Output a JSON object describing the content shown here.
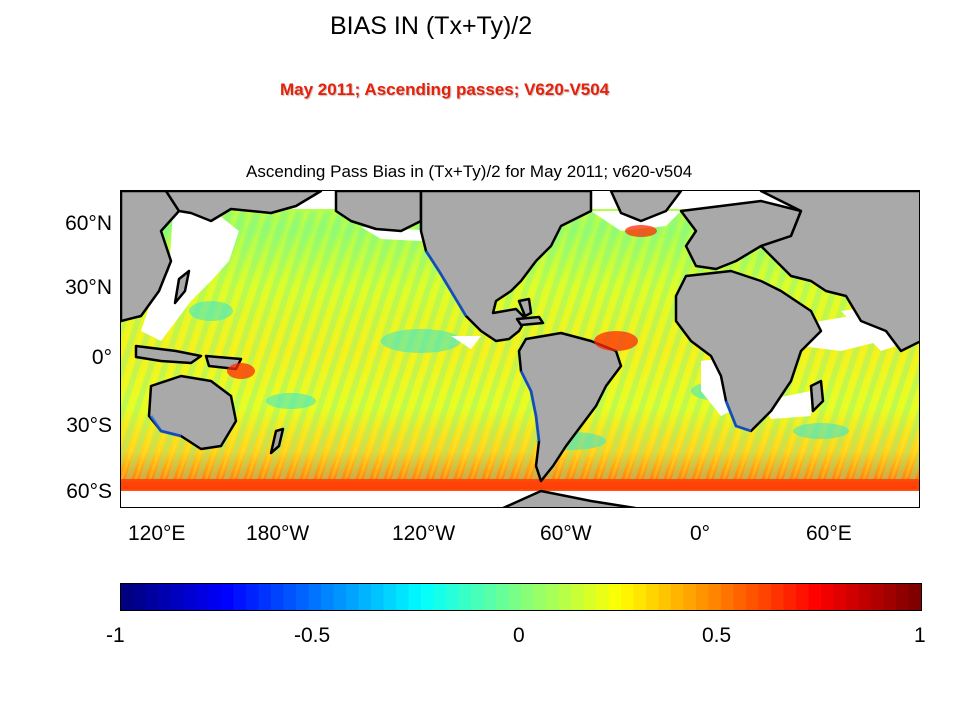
{
  "slide": {
    "title": "BIAS IN (Tx+Ty)/2",
    "subtitle": "May 2011; Ascending passes; V620-V504"
  },
  "map": {
    "title": "Ascending Pass Bias in (Tx+Ty)/2 for May 2011; v620-v504",
    "projection": "equirectangular, Pacific-centered",
    "lat_ticks": [
      "60°N",
      "30°N",
      "0°",
      "30°S",
      "60°S"
    ],
    "lon_ticks": [
      "120°E",
      "180°W",
      "120°W",
      "60°W",
      "0°",
      "60°E"
    ],
    "land_color": "#a9a9a9",
    "ice_color": "#ffffff",
    "coastline_color": "#000000"
  },
  "colorbar": {
    "colormap": "jet",
    "range": [
      -1,
      1
    ],
    "tick_labels": [
      "-1",
      "-0.5",
      "0",
      "0.5",
      "1"
    ]
  }
}
